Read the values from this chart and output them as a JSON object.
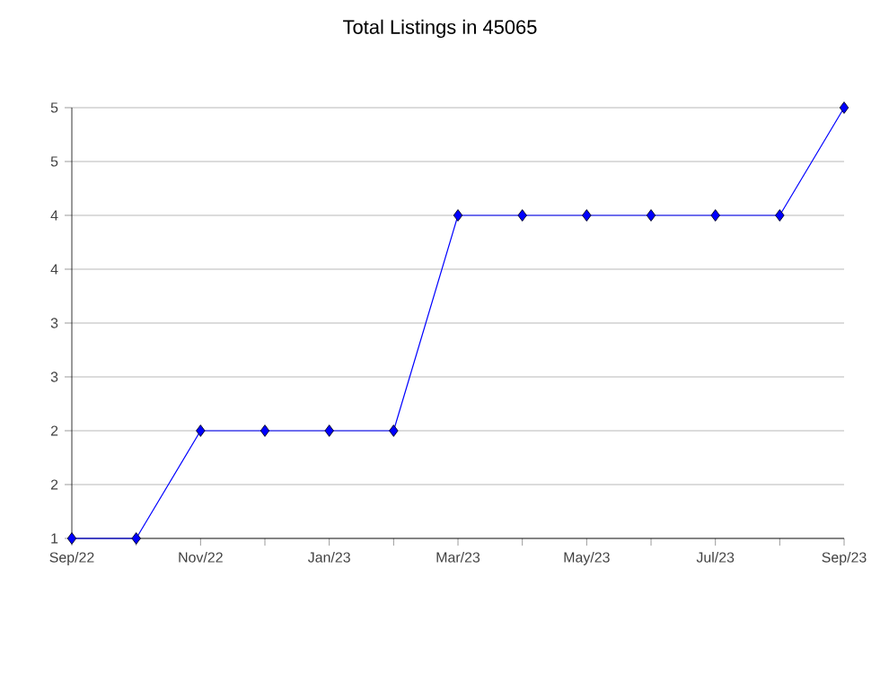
{
  "chart_data": {
    "type": "line",
    "title": "Total Listings in 45065",
    "categories": [
      "Sep/22",
      null,
      "Nov/22",
      null,
      "Jan/23",
      null,
      "Mar/23",
      null,
      "May/23",
      null,
      "Jul/23",
      null,
      "Sep/23"
    ],
    "series": [
      {
        "color": "#0000ff",
        "values": [
          1,
          1,
          2,
          2,
          2,
          2,
          4,
          4,
          4,
          4,
          4,
          4,
          5
        ]
      }
    ],
    "ylim": [
      1,
      5
    ],
    "yticks": [
      1,
      {
        "value": 1.5,
        "label": "2"
      },
      2,
      {
        "value": 2.5,
        "label": "3"
      },
      3,
      {
        "value": 3.5,
        "label": "4"
      },
      4,
      {
        "value": 4.5,
        "label": "5"
      },
      5
    ],
    "grid": "y",
    "marker": "diamond",
    "line_style": "solid"
  }
}
